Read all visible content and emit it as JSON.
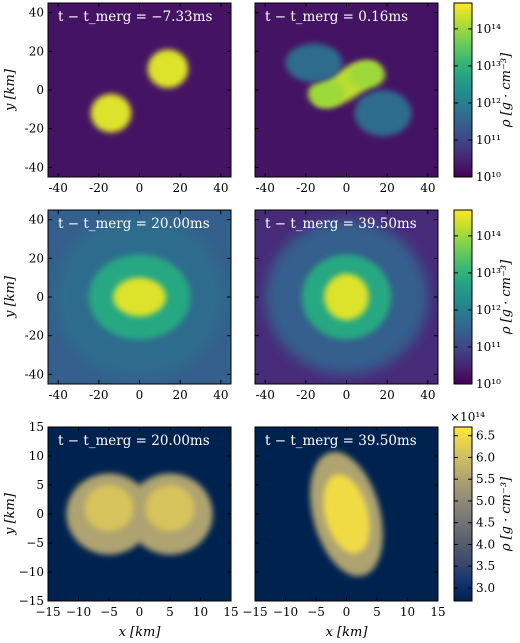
{
  "chart_data": [
    {
      "type": "heatmap",
      "row": 0,
      "xlim": [
        -45,
        45
      ],
      "ylim": [
        -45,
        45
      ],
      "xticks": [
        "-40",
        "-20",
        "0",
        "20",
        "40"
      ],
      "yticks": [
        "-40",
        "-20",
        "0",
        "20",
        "40"
      ],
      "ylabel": "y [km]",
      "colorbar": {
        "label": "ρ [g · cm⁻³]",
        "scale": "log",
        "range": [
          10000000000.0,
          500000000000000.0
        ],
        "ticks": [
          "10¹⁰",
          "10¹¹",
          "10¹²",
          "10¹³",
          "10¹⁴"
        ],
        "colormap": "viridis"
      },
      "panels": [
        {
          "annotation": "t − t_merg = −7.33ms",
          "blobs": [
            {
              "x": -14,
              "y": -12,
              "rx": 10,
              "ry": 10,
              "level": 0.95
            },
            {
              "x": 14,
              "y": 11,
              "rx": 10,
              "ry": 10,
              "level": 0.95
            }
          ],
          "background_level": 0.05
        },
        {
          "annotation": "t − t_merg = 0.16ms",
          "blobs": [
            {
              "x": 0,
              "y": 3,
              "rx": 18,
              "ry": 8,
              "level": 0.9,
              "rotate": -30
            },
            {
              "x": -10,
              "y": -2,
              "rx": 9,
              "ry": 7,
              "level": 0.85
            },
            {
              "x": 10,
              "y": 8,
              "rx": 9,
              "ry": 7,
              "level": 0.85
            },
            {
              "x": -16,
              "y": 14,
              "rx": 14,
              "ry": 10,
              "level": 0.35
            },
            {
              "x": 18,
              "y": -12,
              "rx": 14,
              "ry": 12,
              "level": 0.35
            }
          ],
          "background_level": 0.05
        }
      ]
    },
    {
      "type": "heatmap",
      "row": 1,
      "xlim": [
        -45,
        45
      ],
      "ylim": [
        -45,
        45
      ],
      "xticks": [
        "-40",
        "-20",
        "0",
        "20",
        "40"
      ],
      "yticks": [
        "-40",
        "-20",
        "0",
        "20",
        "40"
      ],
      "ylabel": "y [km]",
      "colorbar": {
        "label": "ρ [g · cm⁻³]",
        "scale": "log",
        "range": [
          10000000000.0,
          500000000000000.0
        ],
        "ticks": [
          "10¹⁰",
          "10¹¹",
          "10¹²",
          "10¹³",
          "10¹⁴"
        ],
        "colormap": "viridis"
      },
      "panels": [
        {
          "annotation": "t − t_merg = 20.00ms",
          "blobs": [
            {
              "x": 0,
              "y": 0,
              "rx": 42,
              "ry": 42,
              "level": 0.35
            },
            {
              "x": 0,
              "y": 0,
              "rx": 25,
              "ry": 22,
              "level": 0.6
            },
            {
              "x": 0,
              "y": 0,
              "rx": 13,
              "ry": 10,
              "level": 0.95
            }
          ],
          "background_level": 0.3
        },
        {
          "annotation": "t − t_merg = 39.50ms",
          "blobs": [
            {
              "x": 0,
              "y": 0,
              "rx": 40,
              "ry": 40,
              "level": 0.3
            },
            {
              "x": 0,
              "y": 0,
              "rx": 22,
              "ry": 22,
              "level": 0.6
            },
            {
              "x": 0,
              "y": 0,
              "rx": 11,
              "ry": 12,
              "level": 0.95
            }
          ],
          "background_level": 0.12
        }
      ]
    },
    {
      "type": "heatmap",
      "row": 2,
      "xlim": [
        -15,
        15
      ],
      "ylim": [
        -15,
        15
      ],
      "xticks": [
        "−15",
        "−10",
        "−5",
        "0",
        "5",
        "10",
        "15"
      ],
      "yticks": [
        "−15",
        "−10",
        "−5",
        "0",
        "5",
        "10",
        "15"
      ],
      "xlabel": "x [km]",
      "ylabel": "y [km]",
      "colorbar": {
        "label": "ρ [g · cm⁻³]",
        "scale": "linear",
        "range": [
          2.7,
          6.7
        ],
        "multiplier": "×10¹⁴",
        "ticks": [
          "3.0",
          "3.5",
          "4.0",
          "4.5",
          "5.0",
          "5.5",
          "6.0",
          "6.5"
        ],
        "colormap": "cividis"
      },
      "panels": [
        {
          "annotation": "t − t_merg = 20.00ms",
          "blobs": [
            {
              "x": -5,
              "y": 0,
              "rx": 7,
              "ry": 7,
              "level": 0.7
            },
            {
              "x": 5,
              "y": 0,
              "rx": 7,
              "ry": 7,
              "level": 0.7
            },
            {
              "x": -5,
              "y": 1,
              "rx": 4,
              "ry": 4,
              "level": 0.85
            },
            {
              "x": 5,
              "y": 1,
              "rx": 4,
              "ry": 4,
              "level": 0.85
            }
          ],
          "background_level": 0.0
        },
        {
          "annotation": "t − t_merg = 39.50ms",
          "blobs": [
            {
              "x": 0,
              "y": 0,
              "rx": 5.5,
              "ry": 11,
              "level": 0.7,
              "rotate": -15
            },
            {
              "x": 0,
              "y": 0,
              "rx": 3.5,
              "ry": 7,
              "level": 0.95,
              "rotate": -15
            }
          ],
          "background_level": 0.0
        }
      ]
    }
  ]
}
